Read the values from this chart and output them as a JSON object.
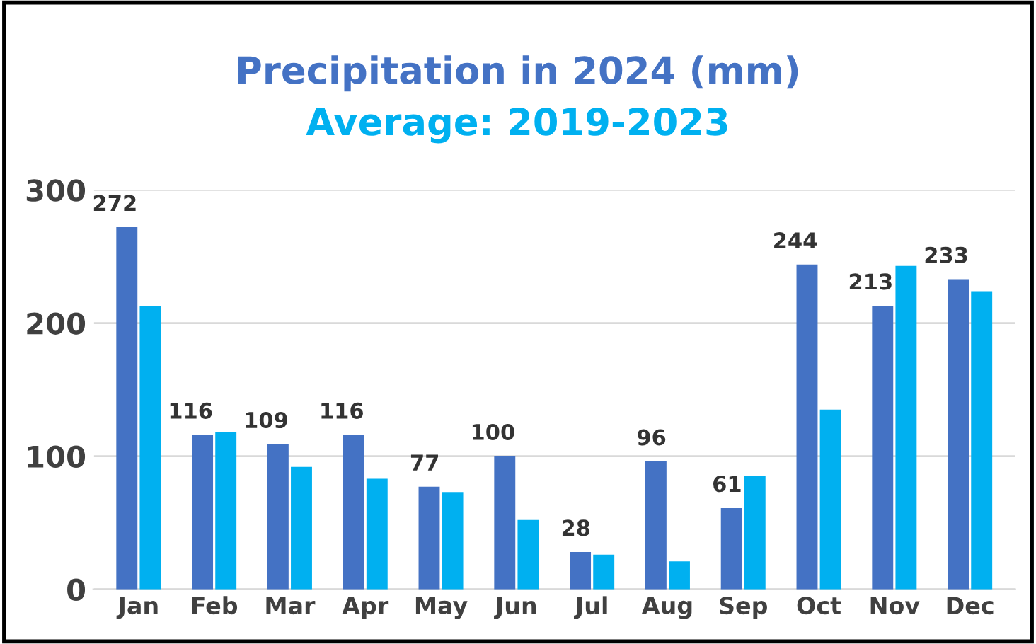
{
  "chart_data": {
    "type": "bar",
    "title": "Precipitation in 2024 (mm)",
    "subtitle": "Average: 2019-2023",
    "categories": [
      "Jan",
      "Feb",
      "Mar",
      "Apr",
      "May",
      "Jun",
      "Jul",
      "Aug",
      "Sep",
      "Oct",
      "Nov",
      "Dec"
    ],
    "series": [
      {
        "color": "#4472c4",
        "values": [
          272,
          116,
          109,
          116,
          77,
          100,
          28,
          96,
          61,
          244,
          213,
          233
        ],
        "value_labels": [
          "272",
          "116",
          "109",
          "116",
          "77",
          "100",
          "28",
          "96",
          "61",
          "244",
          "213",
          "233"
        ]
      },
      {
        "color": "#00b0f0",
        "values": [
          213,
          118,
          92,
          83,
          73,
          52,
          26,
          21,
          85,
          135,
          243,
          224
        ]
      }
    ],
    "ylim": [
      0,
      300
    ],
    "yticks": [
      0,
      100,
      200,
      300
    ],
    "grid": "y",
    "legend": false
  }
}
